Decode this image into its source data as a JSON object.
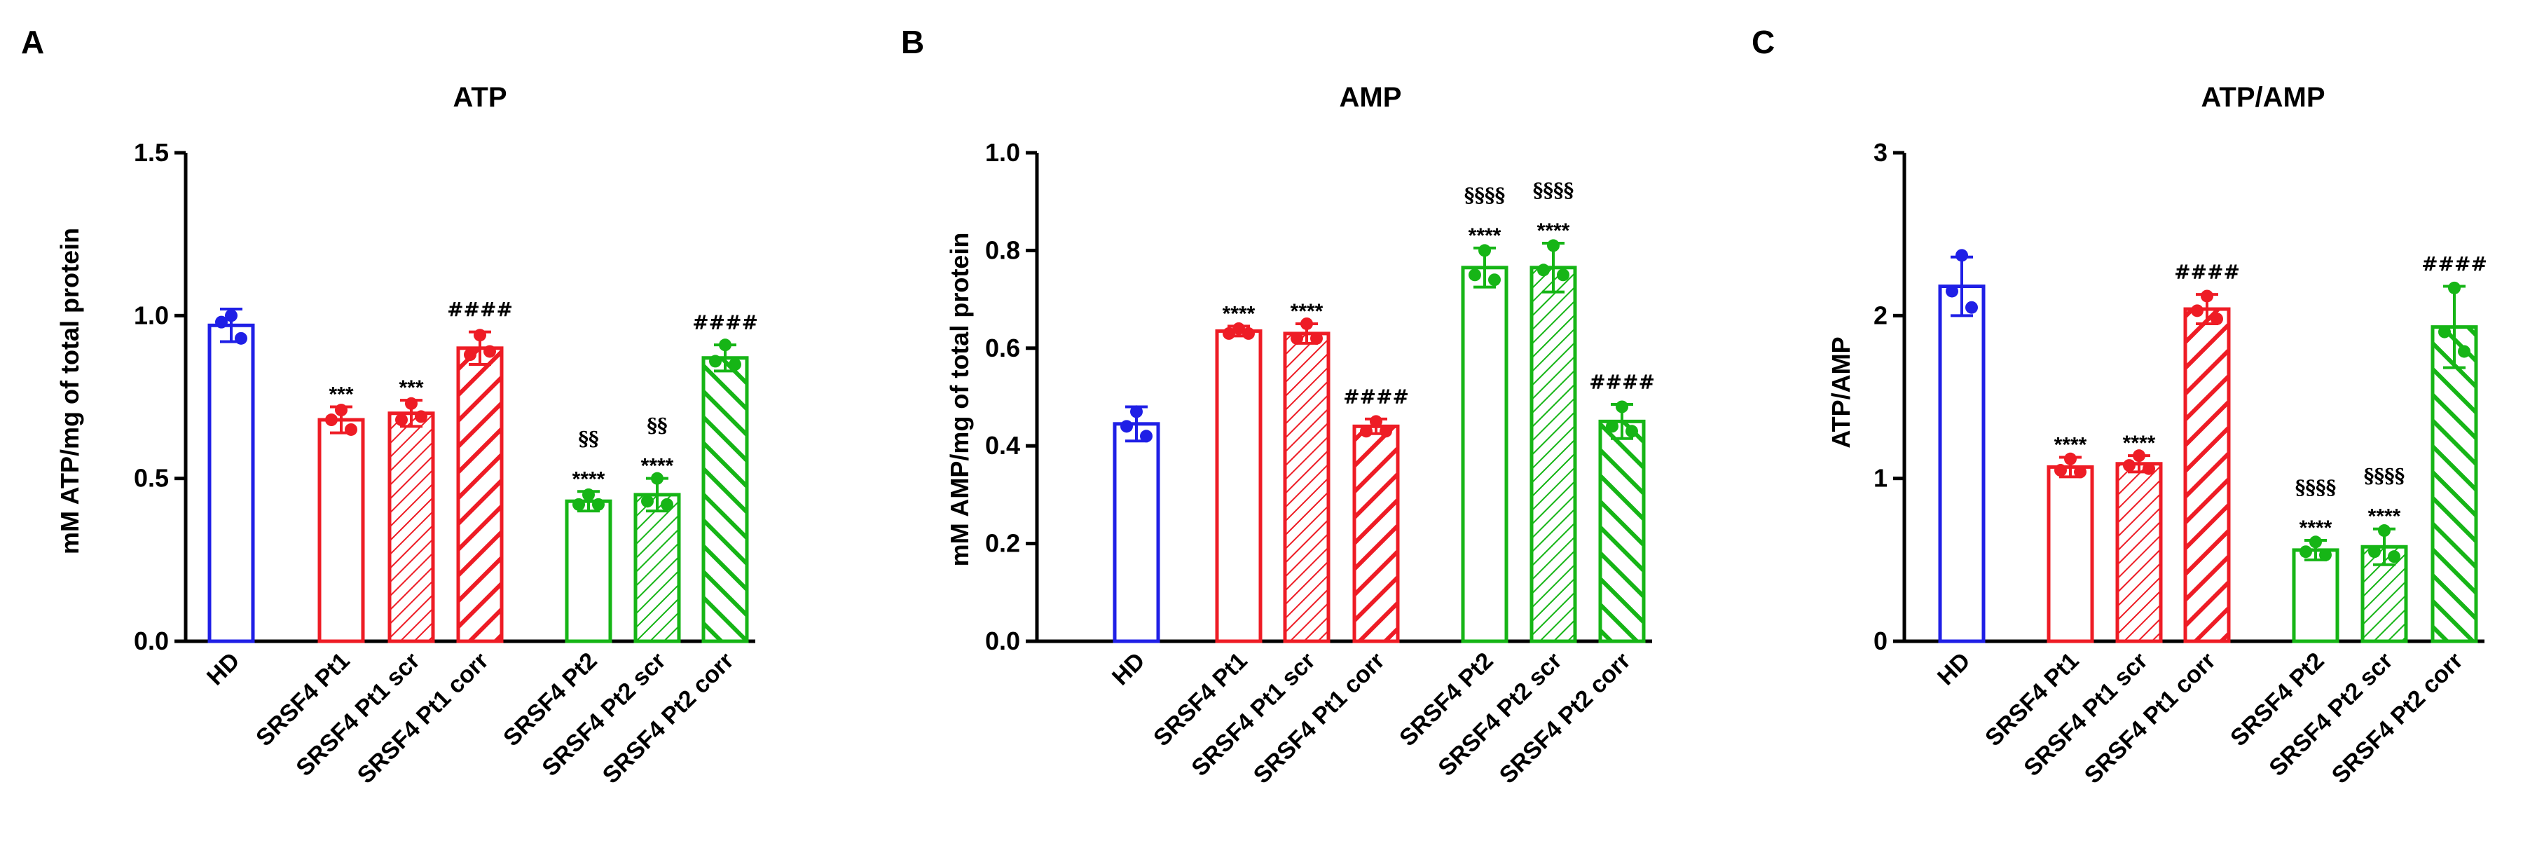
{
  "colors": {
    "HD": "#1f1fe6",
    "Pt1": "#ee1c25",
    "Pt2": "#16b516",
    "axis": "#000000"
  },
  "chart_data": [
    {
      "panel": "A",
      "type": "bar",
      "title": "ATP",
      "ylabel": "mM ATP/mg of total protein",
      "ylim": [
        0,
        1.5
      ],
      "yticks": [
        "0.0",
        "0.5",
        "1.0",
        "1.5"
      ],
      "categories": [
        "HD",
        "SRSF4 Pt1",
        "SRSF4 Pt1 scr",
        "SRSF4 Pt1 corr",
        "SRSF4 Pt2",
        "SRSF4 Pt2 scr",
        "SRSF4 Pt2 corr"
      ],
      "bars": [
        {
          "name": "HD",
          "group": "HD",
          "fill": "none",
          "value": 0.97,
          "err": 0.05,
          "points": [
            1.0,
            0.98,
            0.93
          ],
          "sig": []
        },
        {
          "name": "SRSF4 Pt1",
          "group": "Pt1",
          "fill": "none",
          "value": 0.68,
          "err": 0.04,
          "points": [
            0.71,
            0.68,
            0.65
          ],
          "sig": [
            "***"
          ]
        },
        {
          "name": "SRSF4 Pt1 scr",
          "group": "Pt1",
          "fill": "hatch",
          "value": 0.7,
          "err": 0.04,
          "points": [
            0.73,
            0.68,
            0.69
          ],
          "sig": [
            "***"
          ]
        },
        {
          "name": "SRSF4 Pt1 corr",
          "group": "Pt1",
          "fill": "hatch-bold",
          "value": 0.9,
          "err": 0.05,
          "points": [
            0.94,
            0.88,
            0.89
          ],
          "sig": [
            "####"
          ]
        },
        {
          "name": "SRSF4 Pt2",
          "group": "Pt2",
          "fill": "none",
          "value": 0.43,
          "err": 0.03,
          "points": [
            0.45,
            0.42,
            0.42
          ],
          "sig": [
            "****",
            "§§"
          ]
        },
        {
          "name": "SRSF4 Pt2 scr",
          "group": "Pt2",
          "fill": "hatch",
          "value": 0.45,
          "err": 0.05,
          "points": [
            0.5,
            0.43,
            0.42
          ],
          "sig": [
            "****",
            "§§"
          ]
        },
        {
          "name": "SRSF4 Pt2 corr",
          "group": "Pt2",
          "fill": "hatch-bold",
          "value": 0.87,
          "err": 0.04,
          "points": [
            0.91,
            0.86,
            0.85
          ],
          "sig": [
            "####"
          ]
        }
      ]
    },
    {
      "panel": "B",
      "type": "bar",
      "title": "AMP",
      "ylabel": "mM AMP/mg of total protein",
      "ylim": [
        0,
        1.0
      ],
      "yticks": [
        "0.0",
        "0.2",
        "0.4",
        "0.6",
        "0.8",
        "1.0"
      ],
      "categories": [
        "HD",
        "SRSF4 Pt1",
        "SRSF4 Pt1 scr",
        "SRSF4 Pt1 corr",
        "SRSF4 Pt2",
        "SRSF4 Pt2 scr",
        "SRSF4 Pt2 corr"
      ],
      "bars": [
        {
          "name": "HD",
          "group": "HD",
          "fill": "none",
          "value": 0.445,
          "err": 0.035,
          "points": [
            0.47,
            0.44,
            0.42
          ],
          "sig": []
        },
        {
          "name": "SRSF4 Pt1",
          "group": "Pt1",
          "fill": "none",
          "value": 0.635,
          "err": 0.01,
          "points": [
            0.64,
            0.63,
            0.63
          ],
          "sig": [
            "****"
          ]
        },
        {
          "name": "SRSF4 Pt1 scr",
          "group": "Pt1",
          "fill": "hatch",
          "value": 0.63,
          "err": 0.02,
          "points": [
            0.65,
            0.62,
            0.62
          ],
          "sig": [
            "****"
          ]
        },
        {
          "name": "SRSF4 Pt1 corr",
          "group": "Pt1",
          "fill": "hatch-bold",
          "value": 0.44,
          "err": 0.015,
          "points": [
            0.45,
            0.43,
            0.43
          ],
          "sig": [
            "####"
          ]
        },
        {
          "name": "SRSF4 Pt2",
          "group": "Pt2",
          "fill": "none",
          "value": 0.765,
          "err": 0.04,
          "points": [
            0.8,
            0.75,
            0.74
          ],
          "sig": [
            "****",
            "§§§§"
          ]
        },
        {
          "name": "SRSF4 Pt2 scr",
          "group": "Pt2",
          "fill": "hatch",
          "value": 0.765,
          "err": 0.05,
          "points": [
            0.81,
            0.76,
            0.75
          ],
          "sig": [
            "****",
            "§§§§"
          ]
        },
        {
          "name": "SRSF4 Pt2 corr",
          "group": "Pt2",
          "fill": "hatch-bold",
          "value": 0.45,
          "err": 0.035,
          "points": [
            0.48,
            0.44,
            0.43
          ],
          "sig": [
            "####"
          ]
        }
      ]
    },
    {
      "panel": "C",
      "type": "bar",
      "title": "ATP/AMP",
      "ylabel": "ATP/AMP",
      "ylim": [
        0,
        3
      ],
      "yticks": [
        "0",
        "1",
        "2",
        "3"
      ],
      "categories": [
        "HD",
        "SRSF4 Pt1",
        "SRSF4 Pt1 scr",
        "SRSF4 Pt1 corr",
        "SRSF4 Pt2",
        "SRSF4 Pt2 scr",
        "SRSF4 Pt2 corr"
      ],
      "bars": [
        {
          "name": "HD",
          "group": "HD",
          "fill": "none",
          "value": 2.18,
          "err": 0.18,
          "points": [
            2.37,
            2.15,
            2.05
          ],
          "sig": []
        },
        {
          "name": "SRSF4 Pt1",
          "group": "Pt1",
          "fill": "none",
          "value": 1.07,
          "err": 0.06,
          "points": [
            1.12,
            1.05,
            1.04
          ],
          "sig": [
            "****"
          ]
        },
        {
          "name": "SRSF4 Pt1 scr",
          "group": "Pt1",
          "fill": "hatch",
          "value": 1.09,
          "err": 0.05,
          "points": [
            1.14,
            1.08,
            1.06
          ],
          "sig": [
            "****"
          ]
        },
        {
          "name": "SRSF4 Pt1 corr",
          "group": "Pt1",
          "fill": "hatch-bold",
          "value": 2.04,
          "err": 0.09,
          "points": [
            2.12,
            2.03,
            1.98
          ],
          "sig": [
            "####"
          ]
        },
        {
          "name": "SRSF4 Pt2",
          "group": "Pt2",
          "fill": "none",
          "value": 0.56,
          "err": 0.06,
          "points": [
            0.61,
            0.55,
            0.53
          ],
          "sig": [
            "****",
            "§§§§"
          ]
        },
        {
          "name": "SRSF4 Pt2 scr",
          "group": "Pt2",
          "fill": "hatch",
          "value": 0.58,
          "err": 0.11,
          "points": [
            0.68,
            0.55,
            0.52
          ],
          "sig": [
            "****",
            "§§§§"
          ]
        },
        {
          "name": "SRSF4 Pt2 corr",
          "group": "Pt2",
          "fill": "hatch-bold",
          "value": 1.93,
          "err": 0.25,
          "points": [
            2.17,
            1.9,
            1.78
          ],
          "sig": [
            "####"
          ]
        }
      ]
    }
  ]
}
